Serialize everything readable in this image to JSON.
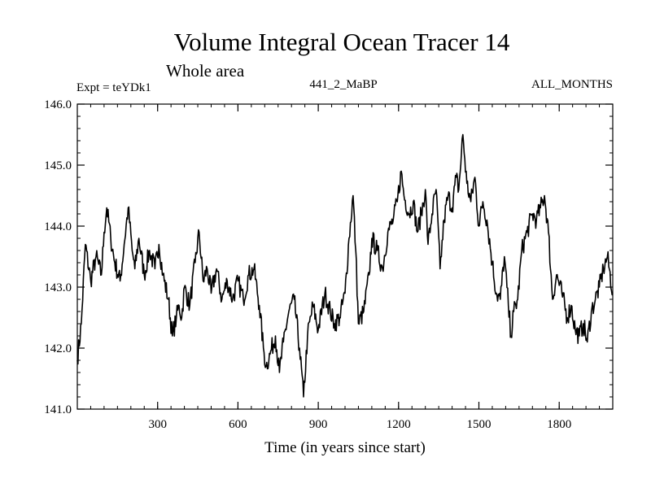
{
  "chart_data": {
    "type": "line",
    "title": "Volume Integral Ocean Tracer 14",
    "subtitle": "Whole area",
    "annotations": {
      "left": "Expt = teYDk1",
      "center": "441_2_MaBP",
      "right": "ALL_MONTHS"
    },
    "xlabel": "Time (in years since start)",
    "ylabel": "",
    "xlim": [
      0,
      2000
    ],
    "ylim": [
      141.0,
      146.0
    ],
    "xticks": [
      300,
      600,
      900,
      1200,
      1500,
      1800
    ],
    "xtick_labels": [
      "300",
      "600",
      "900",
      "1200",
      "1500",
      "1800"
    ],
    "yticks": [
      141.0,
      142.0,
      143.0,
      144.0,
      145.0,
      146.0
    ],
    "ytick_labels": [
      "141.0",
      "142.0",
      "143.0",
      "144.0",
      "145.0",
      "146.0"
    ],
    "grid": false,
    "series": [
      {
        "name": "Volume Integral Ocean Tracer 14",
        "x": [
          0,
          15,
          30,
          50,
          70,
          90,
          100,
          110,
          125,
          140,
          160,
          175,
          190,
          205,
          215,
          230,
          250,
          270,
          290,
          305,
          320,
          340,
          355,
          370,
          380,
          390,
          400,
          420,
          440,
          455,
          470,
          485,
          500,
          520,
          540,
          560,
          580,
          600,
          620,
          640,
          660,
          680,
          695,
          705,
          720,
          740,
          755,
          770,
          790,
          810,
          830,
          845,
          860,
          880,
          900,
          925,
          945,
          960,
          980,
          1000,
          1015,
          1030,
          1040,
          1050,
          1070,
          1090,
          1100,
          1120,
          1140,
          1160,
          1180,
          1195,
          1210,
          1220,
          1240,
          1255,
          1270,
          1285,
          1300,
          1310,
          1325,
          1340,
          1355,
          1370,
          1385,
          1400,
          1415,
          1425,
          1440,
          1455,
          1470,
          1485,
          1500,
          1515,
          1530,
          1550,
          1565,
          1580,
          1595,
          1610,
          1620,
          1630,
          1645,
          1660,
          1680,
          1700,
          1715,
          1730,
          1745,
          1760,
          1775,
          1790,
          1810,
          1830,
          1845,
          1860,
          1875,
          1890,
          1905,
          1920,
          1935,
          1950,
          1965,
          1980,
          2000
        ],
        "y": [
          141.8,
          142.4,
          143.7,
          143.1,
          143.5,
          143.2,
          143.9,
          144.3,
          143.8,
          143.4,
          143.1,
          143.7,
          144.3,
          143.6,
          143.3,
          143.8,
          143.2,
          143.6,
          143.3,
          143.7,
          143.2,
          142.8,
          142.2,
          142.5,
          142.7,
          142.5,
          143.0,
          142.7,
          143.4,
          143.9,
          143.1,
          143.3,
          142.9,
          143.3,
          142.8,
          143.1,
          142.8,
          143.1,
          142.8,
          143.2,
          143.3,
          142.7,
          142.0,
          141.7,
          141.9,
          142.2,
          141.6,
          142.1,
          142.6,
          142.8,
          142.0,
          141.2,
          142.2,
          142.7,
          142.3,
          142.9,
          142.6,
          142.4,
          142.5,
          142.9,
          143.8,
          144.5,
          143.6,
          142.4,
          142.6,
          143.2,
          143.8,
          143.6,
          143.3,
          143.9,
          144.1,
          144.4,
          144.9,
          144.5,
          144.2,
          144.4,
          143.9,
          144.2,
          144.6,
          143.7,
          144.2,
          144.6,
          143.3,
          144.1,
          144.5,
          144.3,
          144.8,
          144.6,
          145.5,
          144.7,
          144.4,
          144.8,
          144.0,
          144.4,
          144.1,
          143.4,
          142.9,
          142.8,
          143.5,
          142.7,
          142.2,
          142.6,
          142.8,
          143.6,
          143.9,
          144.2,
          144.1,
          144.3,
          144.5,
          143.9,
          142.8,
          143.2,
          142.9,
          142.5,
          142.7,
          142.3,
          142.2,
          142.4,
          142.1,
          142.6,
          142.8,
          143.0,
          143.3,
          143.5,
          142.9
        ]
      }
    ]
  }
}
